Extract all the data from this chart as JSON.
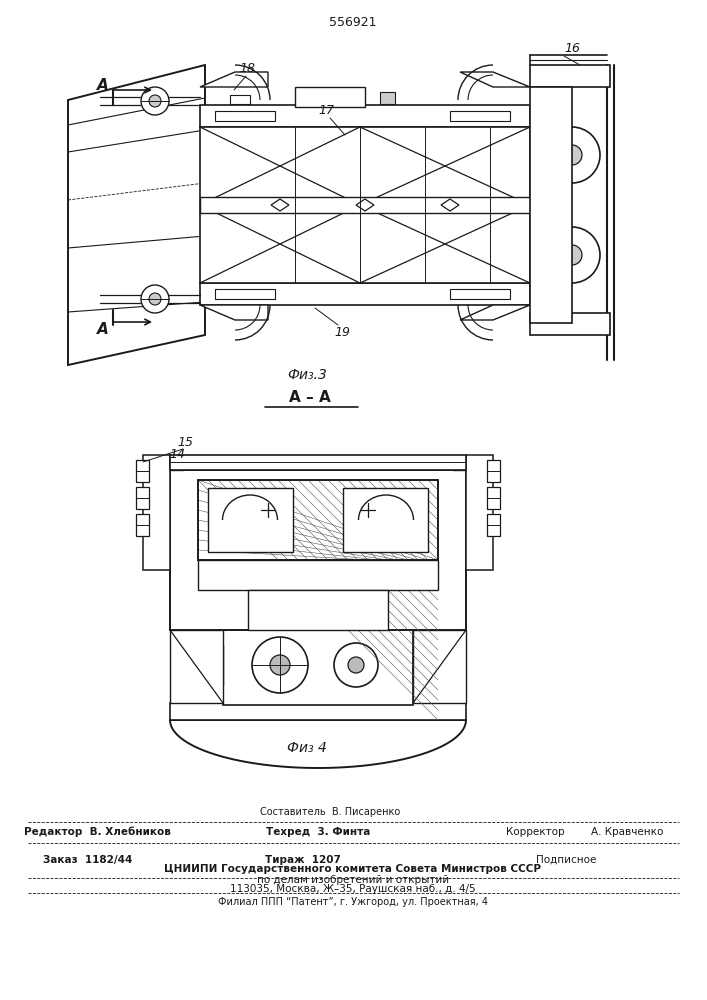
{
  "patent_number": "556921",
  "fig3_label": "Фи₃.3",
  "fig4_label": "Фи₃ 4",
  "section_label": "А – А",
  "footer_line1_center_top": "Составитель  В. Писаренко",
  "footer_line1_left": "Редактор  В. Хлебников",
  "footer_line1_center": "Техред  3. Финта",
  "footer_line1_right_label": "Корректор",
  "footer_line1_right": "А. Кравченко",
  "footer_line2_left": "Заказ  1182/44",
  "footer_line2_center": "Тираж  1207",
  "footer_line2_right": "Подписное",
  "footer_line3": "ЦНИИПИ Государственного комитета Совета Министров СССР",
  "footer_line4": "по делам изобретений и открытий",
  "footer_line5": "113035, Москва, Ж–35, Раушская наб., д. 4/5",
  "footer_line6": "Филиал ППП “Патент”, г. Ужгород, ул. Проектная, 4",
  "bg_color": "#ffffff",
  "line_color": "#1a1a1a"
}
